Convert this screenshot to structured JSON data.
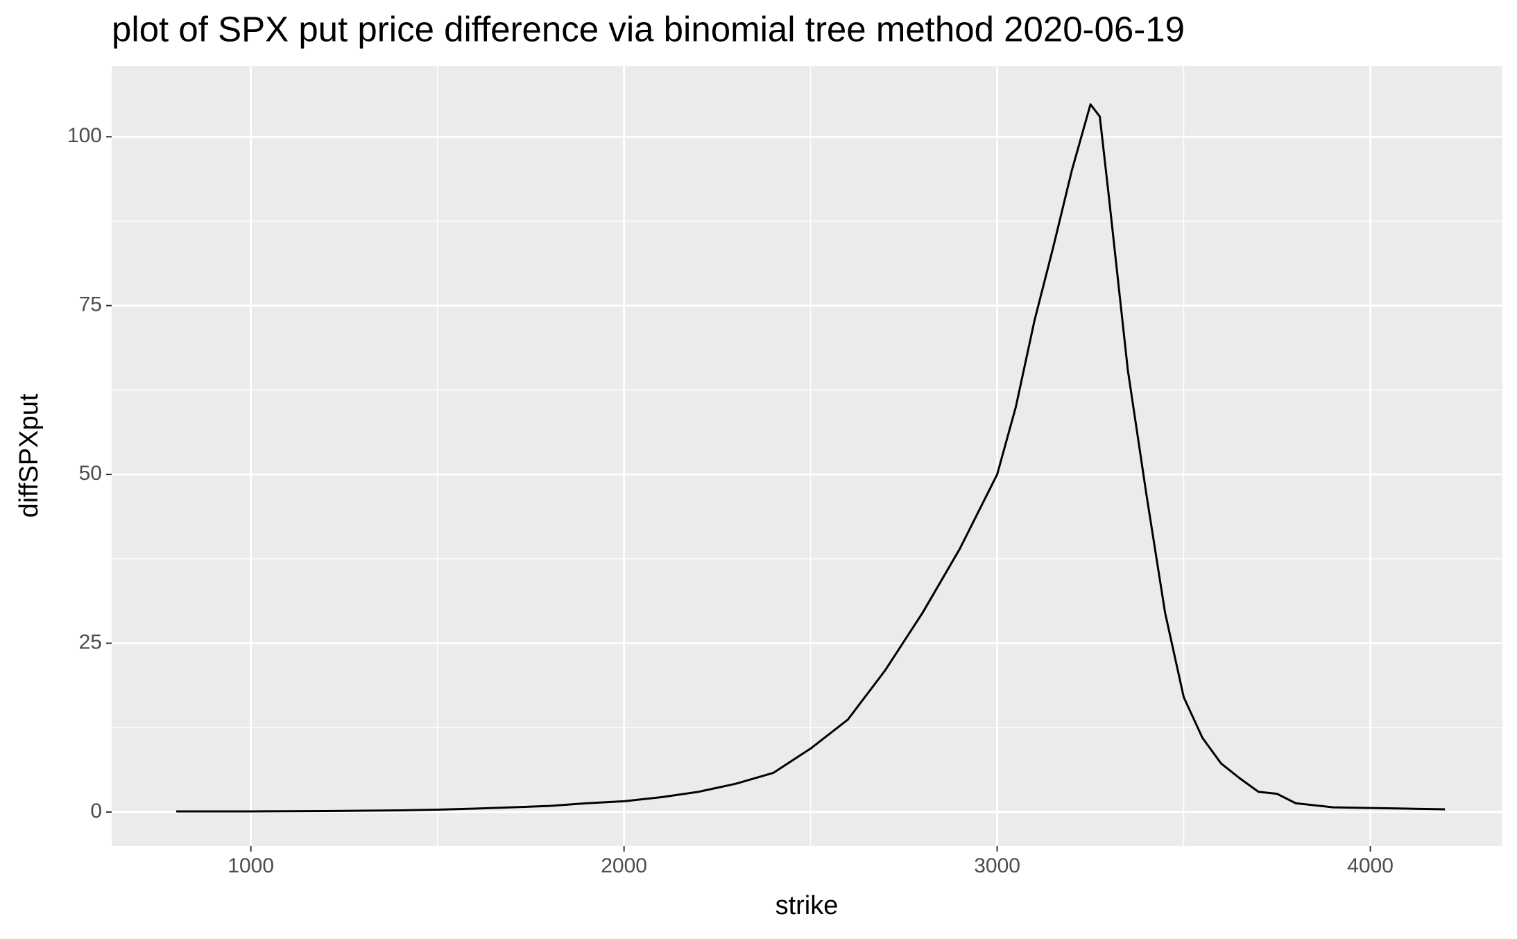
{
  "chart_data": {
    "type": "line",
    "title": "plot of SPX put price difference via binomial tree method 2020-06-19",
    "x_label": "strike",
    "y_label": "diffSPXput",
    "x": [
      800,
      1000,
      1200,
      1400,
      1500,
      1600,
      1700,
      1800,
      1900,
      2000,
      2100,
      2200,
      2300,
      2400,
      2500,
      2600,
      2700,
      2800,
      2900,
      3000,
      3050,
      3100,
      3150,
      3200,
      3250,
      3275,
      3300,
      3350,
      3400,
      3450,
      3500,
      3550,
      3600,
      3650,
      3700,
      3750,
      3800,
      3900,
      4000,
      4100,
      4200
    ],
    "series": [
      {
        "color": "#000000",
        "values": [
          0.1,
          0.1,
          0.15,
          0.25,
          0.35,
          0.5,
          0.7,
          0.9,
          1.3,
          1.6,
          2.2,
          3.0,
          4.2,
          5.8,
          9.4,
          13.7,
          21,
          29.5,
          39,
          50,
          60,
          72.8,
          83.6,
          95,
          104.8,
          103,
          90.8,
          65.5,
          47,
          29.5,
          17,
          11,
          7.2,
          5,
          3,
          2.7,
          1.3,
          0.7,
          0.6,
          0.5,
          0.4
        ]
      }
    ],
    "xlim": [
      627,
      4354
    ],
    "ylim": [
      -5.04,
      110.5
    ],
    "xticks": [
      1000,
      2000,
      3000,
      4000
    ],
    "yticks": [
      0,
      25,
      50,
      75,
      100
    ],
    "grid": true
  }
}
